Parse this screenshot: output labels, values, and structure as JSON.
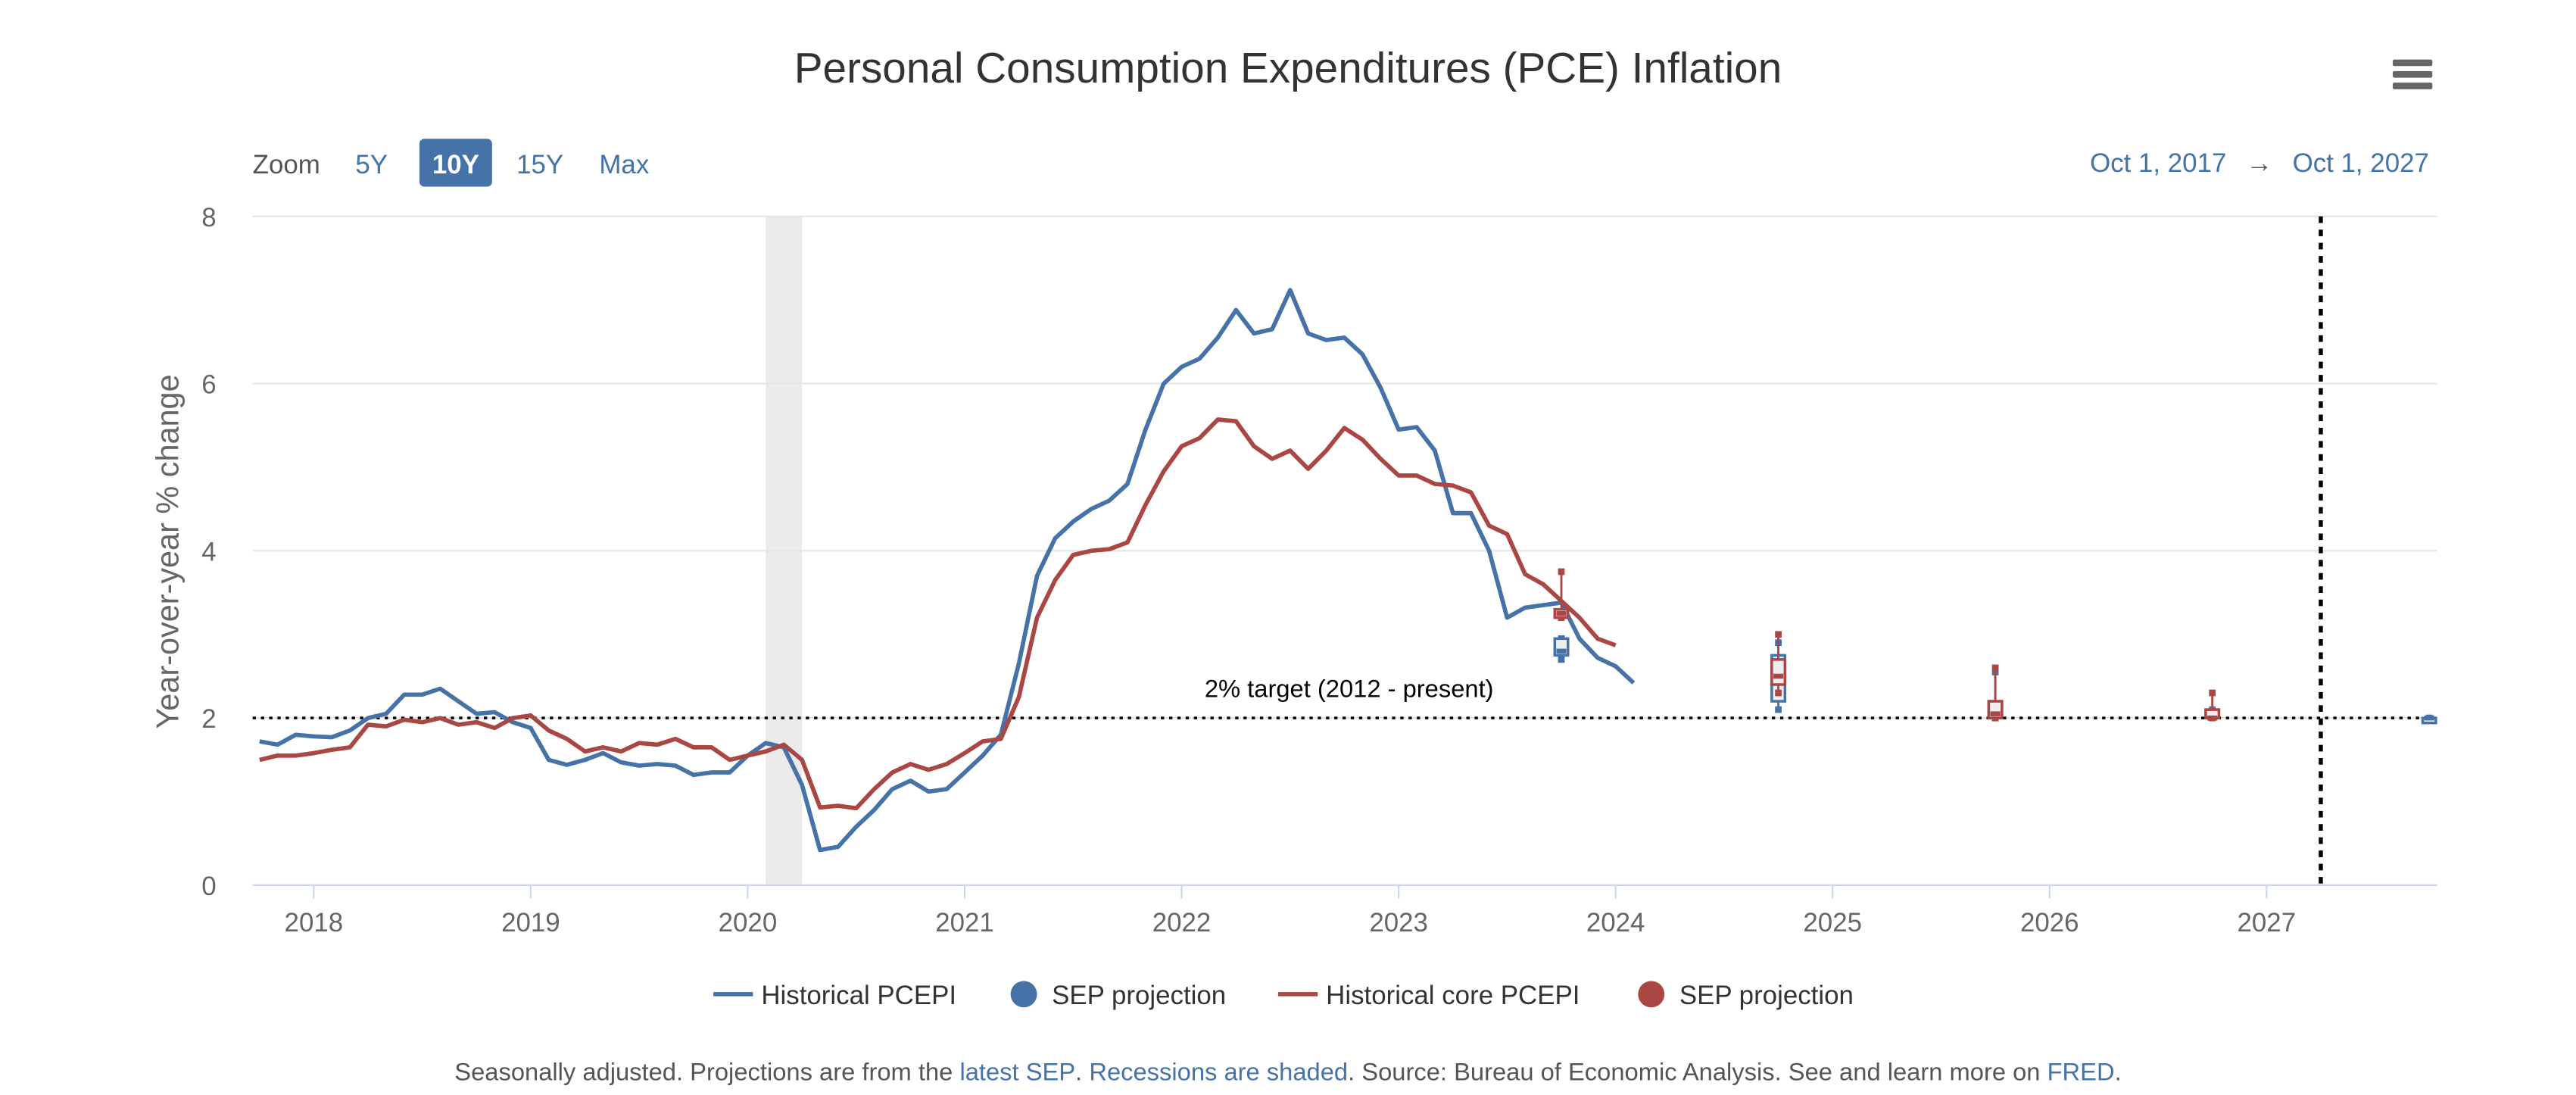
{
  "title": "Personal Consumption Expenditures (PCE) Inflation",
  "menu_icon": "hamburger-menu-icon",
  "zoom": {
    "label": "Zoom",
    "buttons": [
      "5Y",
      "10Y",
      "15Y",
      "Max"
    ],
    "selected": "10Y"
  },
  "range": {
    "from": "Oct 1, 2017",
    "arrow": "→",
    "to": "Oct 1, 2027"
  },
  "colors": {
    "headline": "#4572a7",
    "core": "#aa4643",
    "recession": "#ebebeb",
    "grid": "#e6e6e6"
  },
  "chart_data": {
    "type": "line",
    "title": "Personal Consumption Expenditures (PCE) Inflation",
    "ylabel": "Year-over-year % change",
    "xlabel": "",
    "ylim": [
      0,
      8
    ],
    "yticks": [
      "0",
      "2",
      "4",
      "6",
      "8"
    ],
    "xticks": [
      "2018",
      "2019",
      "2020",
      "2021",
      "2022",
      "2023",
      "2024",
      "2025",
      "2026",
      "2027"
    ],
    "xrange": [
      2017.75,
      2027.75
    ],
    "start": "2017-10",
    "recession": [
      2020.083,
      2020.25
    ],
    "target": {
      "value": 2,
      "label": "2% target (2012 - present)"
    },
    "vertical_marker": 2027.25,
    "series": [
      {
        "name": "Historical PCEPI",
        "kind": "line",
        "color": "#4572a7",
        "values": [
          1.72,
          1.68,
          1.8,
          1.78,
          1.77,
          1.85,
          2.0,
          2.05,
          2.28,
          2.28,
          2.35,
          2.2,
          2.05,
          2.07,
          1.95,
          1.88,
          1.5,
          1.44,
          1.5,
          1.58,
          1.47,
          1.43,
          1.45,
          1.43,
          1.32,
          1.35,
          1.35,
          1.55,
          1.7,
          1.65,
          1.2,
          0.42,
          0.46,
          0.7,
          0.9,
          1.15,
          1.25,
          1.12,
          1.15,
          1.35,
          1.55,
          1.8,
          2.65,
          3.7,
          4.15,
          4.35,
          4.5,
          4.6,
          4.8,
          5.45,
          6.0,
          6.2,
          6.3,
          6.55,
          6.88,
          6.6,
          6.65,
          7.12,
          6.6,
          6.52,
          6.55,
          6.35,
          5.95,
          5.45,
          5.48,
          5.2,
          4.45,
          4.45,
          4.0,
          3.2,
          3.32,
          3.35,
          3.38,
          2.95,
          2.72,
          2.62,
          2.42
        ]
      },
      {
        "name": "SEP projection",
        "kind": "boxplot",
        "color": "#4572a7",
        "points": [
          {
            "x": 2023.75,
            "low": 2.7,
            "q1": 2.75,
            "median": 2.8,
            "q3": 2.95,
            "high": 2.95
          },
          {
            "x": 2024.75,
            "low": 2.1,
            "q1": 2.2,
            "median": 2.45,
            "q3": 2.75,
            "high": 2.9
          },
          {
            "x": 2025.75,
            "low": 2.0,
            "q1": 2.0,
            "median": 2.1,
            "q3": 2.2,
            "high": 2.55
          },
          {
            "x": 2026.75,
            "low": 2.0,
            "q1": 2.0,
            "median": 2.0,
            "q3": 2.1,
            "high": 2.1
          },
          {
            "x": 2027.75,
            "low": 2.0,
            "q1": 2.0,
            "median": 2.0,
            "q3": 2.0,
            "high": 2.0
          }
        ]
      },
      {
        "name": "Historical core PCEPI",
        "kind": "line",
        "color": "#aa4643",
        "values": [
          1.5,
          1.55,
          1.55,
          1.58,
          1.62,
          1.65,
          1.92,
          1.9,
          1.98,
          1.95,
          2.0,
          1.92,
          1.95,
          1.88,
          2.0,
          2.03,
          1.85,
          1.75,
          1.6,
          1.65,
          1.6,
          1.7,
          1.68,
          1.75,
          1.65,
          1.65,
          1.5,
          1.55,
          1.6,
          1.68,
          1.5,
          0.93,
          0.95,
          0.92,
          1.15,
          1.35,
          1.45,
          1.38,
          1.45,
          1.58,
          1.72,
          1.75,
          2.25,
          3.2,
          3.65,
          3.95,
          4.0,
          4.02,
          4.1,
          4.55,
          4.95,
          5.25,
          5.35,
          5.57,
          5.55,
          5.25,
          5.1,
          5.2,
          4.98,
          5.2,
          5.47,
          5.33,
          5.1,
          4.9,
          4.9,
          4.8,
          4.78,
          4.7,
          4.3,
          4.2,
          3.72,
          3.6,
          3.4,
          3.2,
          2.95,
          2.87
        ]
      },
      {
        "name": "SEP projection",
        "kind": "boxplot",
        "color": "#aa4643",
        "points": [
          {
            "x": 2023.75,
            "low": 3.2,
            "q1": 3.2,
            "median": 3.25,
            "q3": 3.3,
            "high": 3.75
          },
          {
            "x": 2024.75,
            "low": 2.3,
            "q1": 2.4,
            "median": 2.5,
            "q3": 2.7,
            "high": 3.0
          },
          {
            "x": 2025.75,
            "low": 2.0,
            "q1": 2.0,
            "median": 2.05,
            "q3": 2.2,
            "high": 2.6
          },
          {
            "x": 2026.75,
            "low": 2.0,
            "q1": 2.0,
            "median": 2.0,
            "q3": 2.1,
            "high": 2.3
          }
        ]
      }
    ]
  },
  "legend": [
    "Historical PCEPI",
    "SEP projection",
    "Historical core PCEPI",
    "SEP projection"
  ],
  "footer": {
    "t1": "Seasonally adjusted. Projections are from the ",
    "link1": "latest SEP",
    "t2": ". ",
    "link2": "Recessions are shaded",
    "t3": ". Source: Bureau of Economic Analysis. See and learn more on ",
    "link3": "FRED",
    "t4": "."
  }
}
